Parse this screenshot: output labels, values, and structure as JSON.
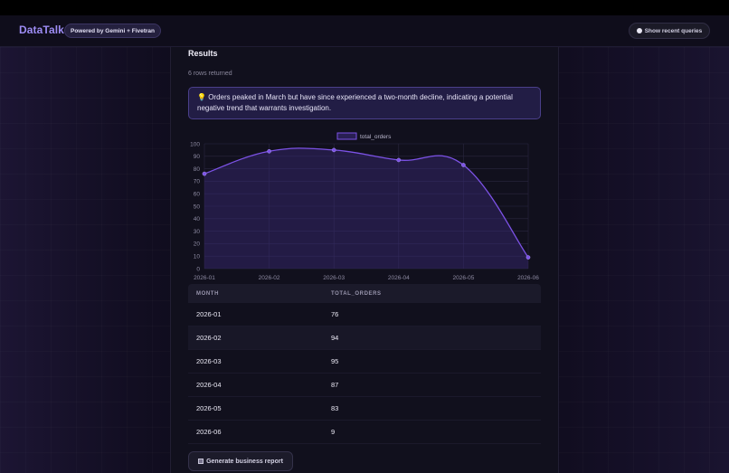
{
  "header": {
    "logo": "DataTalk",
    "badge": "Powered by Gemini + Fivetran",
    "recent_queries_label": "Show recent queries",
    "recent_queries_icon": "circle-icon"
  },
  "results": {
    "title": "Results",
    "rows_returned": "6 rows returned",
    "insight_icon": "💡",
    "insight_text": "Orders peaked in March but have since experienced a two-month decline, indicating a potential negative trend that warrants investigation."
  },
  "chart_data": {
    "type": "line",
    "categories": [
      "2026-01",
      "2026-02",
      "2026-03",
      "2026-04",
      "2026-05",
      "2026-06"
    ],
    "series": [
      {
        "name": "total_orders",
        "values": [
          76,
          94,
          95,
          87,
          83,
          9
        ]
      }
    ],
    "ylim": [
      0,
      100
    ],
    "yticks": [
      0,
      10,
      20,
      30,
      40,
      50,
      60,
      70,
      80,
      90,
      100
    ],
    "grid": true,
    "legend_position": "top-center",
    "line_color": "#7c52e6",
    "fill_color": "#3a2a78"
  },
  "table": {
    "columns": [
      "MONTH",
      "TOTAL_ORDERS"
    ],
    "rows": [
      [
        "2026-01",
        "76"
      ],
      [
        "2026-02",
        "94"
      ],
      [
        "2026-03",
        "95"
      ],
      [
        "2026-04",
        "87"
      ],
      [
        "2026-05",
        "83"
      ],
      [
        "2026-06",
        "9"
      ]
    ]
  },
  "actions": {
    "generate_report_label": "Generate business report",
    "generate_report_icon": "document-icon"
  }
}
